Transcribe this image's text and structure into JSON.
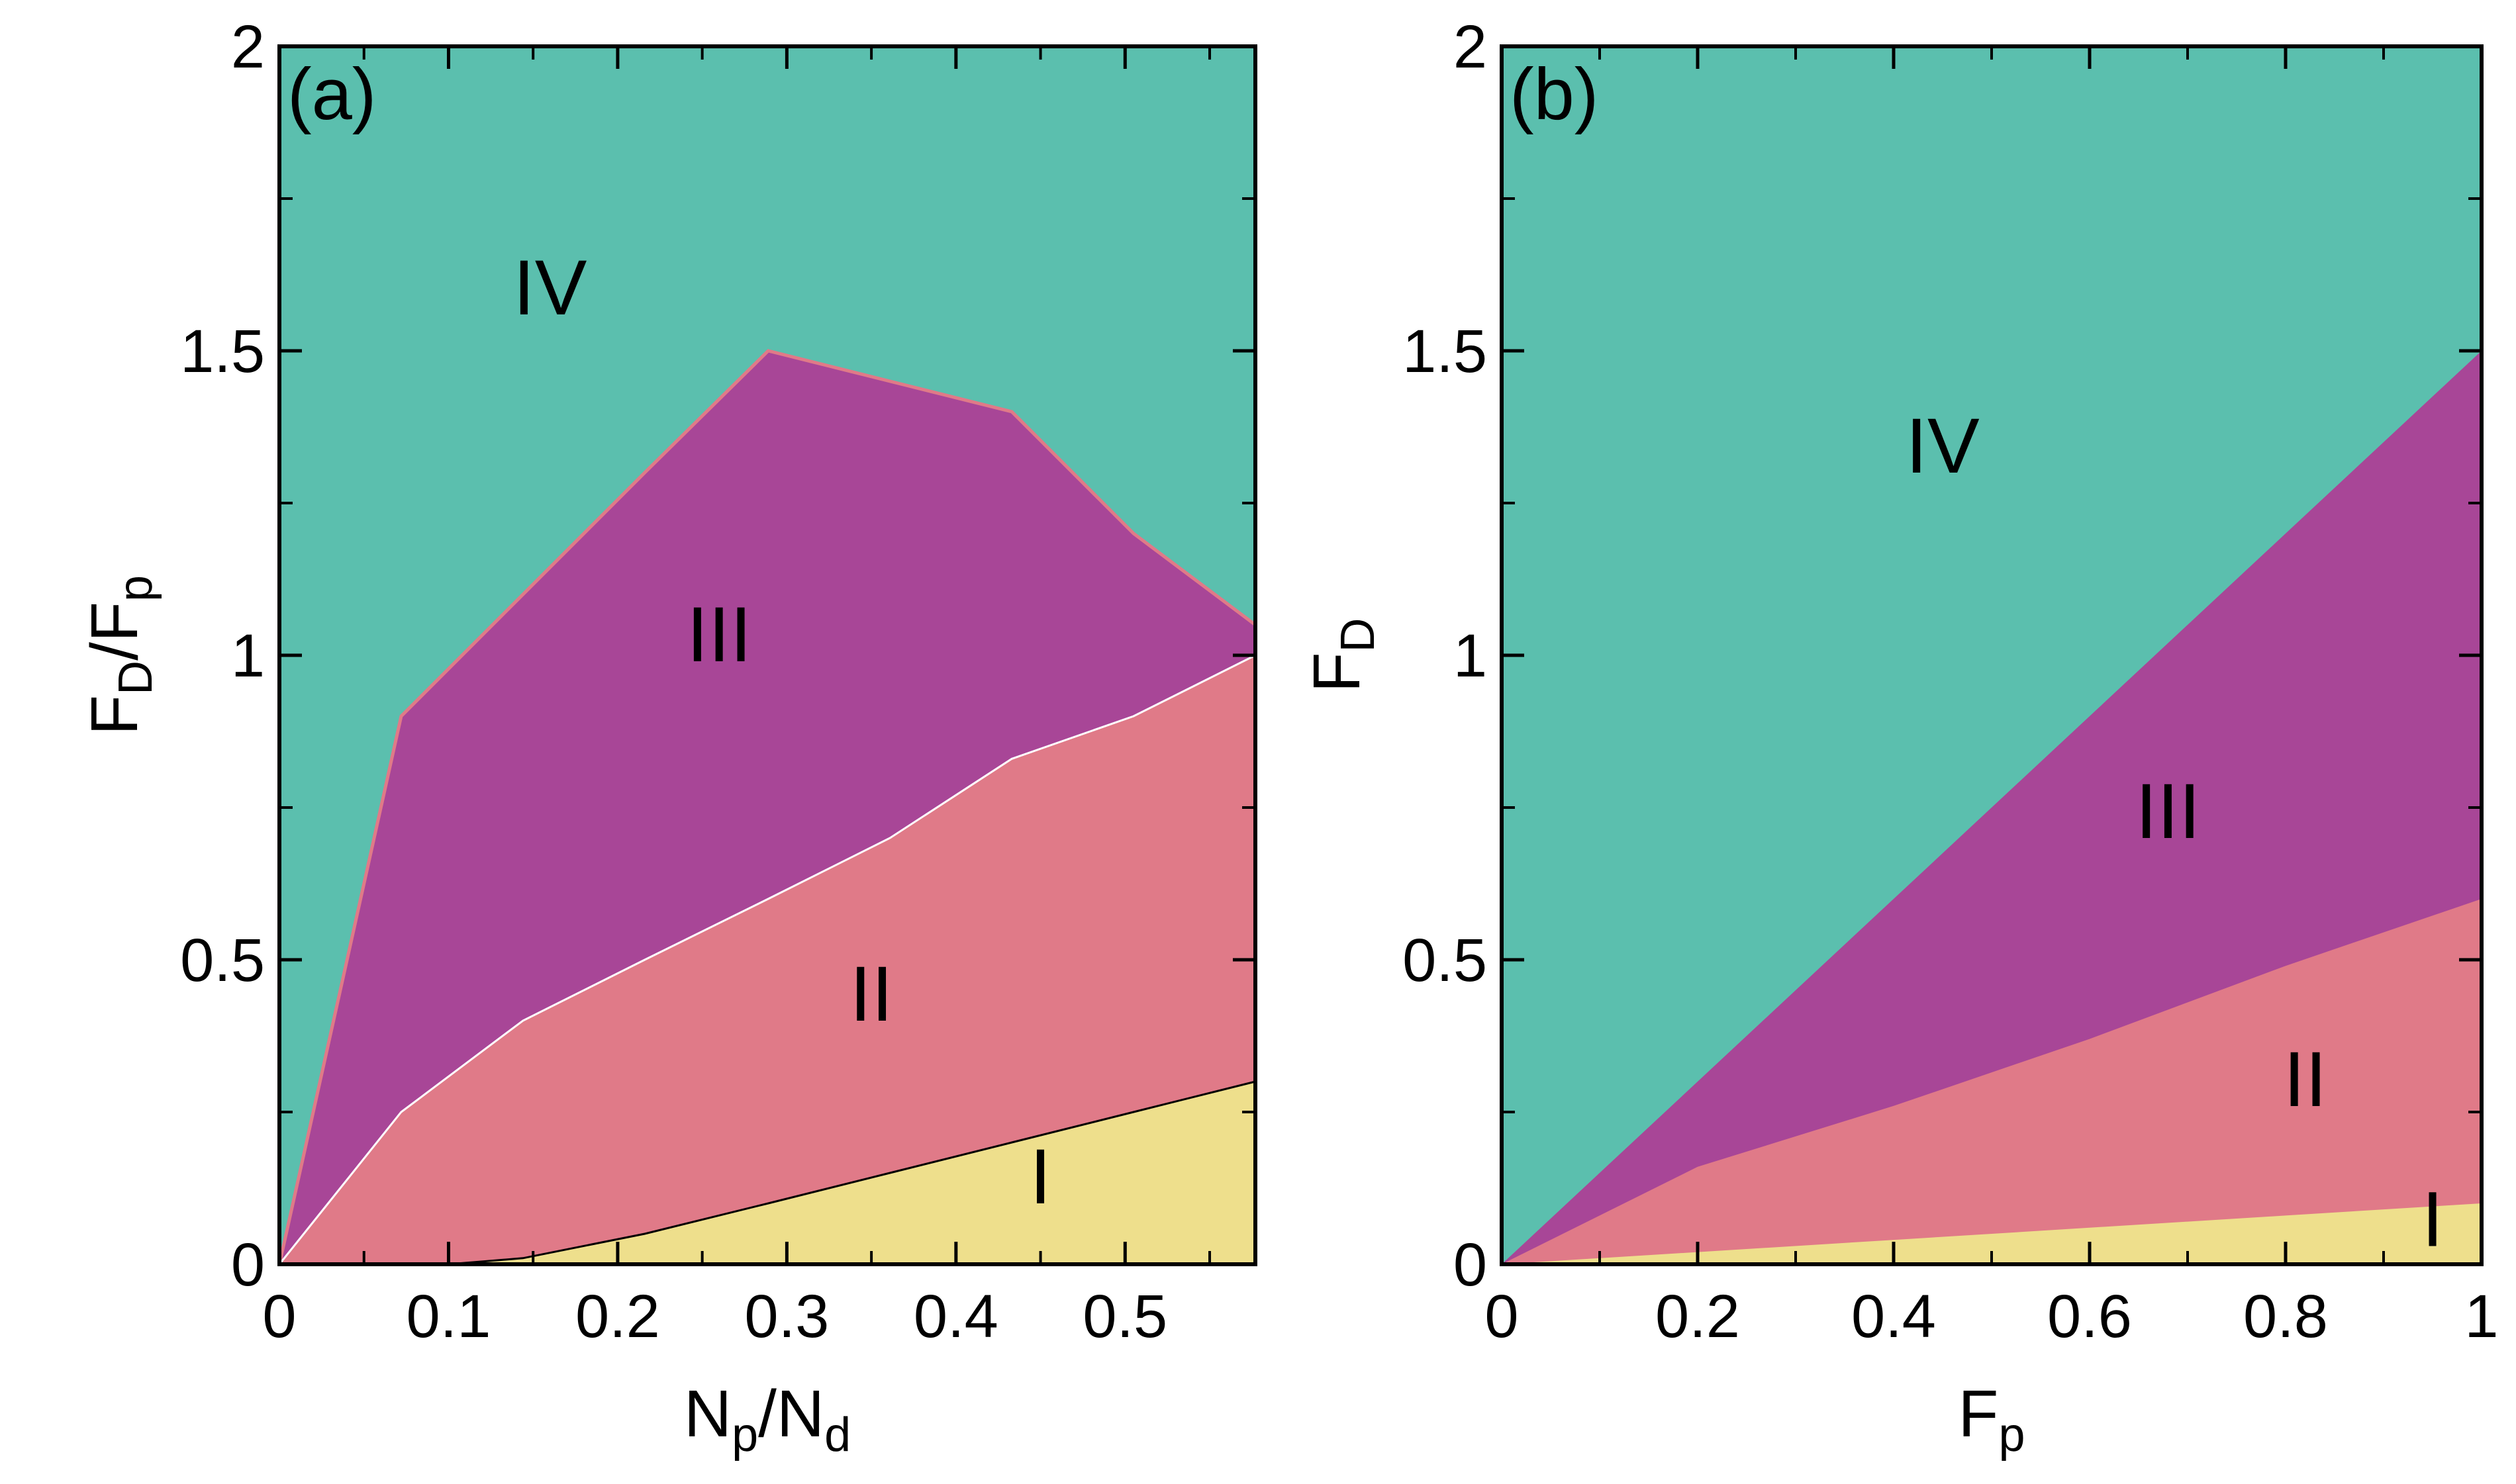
{
  "chart_data": [
    {
      "type": "area",
      "panel_label": "(a)",
      "xlabel": {
        "main1": "N",
        "sub1": "p",
        "mid": "/N",
        "sub2": "d"
      },
      "ylabel": {
        "main1": "F",
        "sub1": "D",
        "mid": "/F",
        "sub2": "p"
      },
      "xlim": [
        0,
        0.577
      ],
      "ylim": [
        0,
        2
      ],
      "xticks": [
        0,
        0.1,
        0.2,
        0.3,
        0.4,
        0.5
      ],
      "xtick_labels": [
        "0",
        "0.1",
        "0.2",
        "0.3",
        "0.4",
        "0.5"
      ],
      "yticks": [
        0,
        0.5,
        1,
        1.5,
        2
      ],
      "ytick_labels": [
        "0",
        "0.5",
        "1",
        "1.5",
        "2"
      ],
      "regions": [
        {
          "name": "IV",
          "color": "#5bbfae",
          "label_at": [
            0.16,
            1.56
          ]
        },
        {
          "name": "III",
          "color": "#a84697",
          "label_at": [
            0.26,
            0.99
          ]
        },
        {
          "name": "II",
          "color": "#e07a88",
          "label_at": [
            0.35,
            0.4
          ]
        },
        {
          "name": "I",
          "color": "#eedf8c",
          "label_at": [
            0.45,
            0.1
          ]
        }
      ],
      "boundaries": {
        "III_IV": {
          "x": [
            0,
            0.072,
            0.144,
            0.216,
            0.289,
            0.361,
            0.433,
            0.505,
            0.577
          ],
          "y": [
            0,
            0.9,
            1.1,
            1.3,
            1.5,
            1.45,
            1.4,
            1.2,
            1.05
          ]
        },
        "II_III": {
          "x": [
            0,
            0.072,
            0.144,
            0.216,
            0.289,
            0.361,
            0.433,
            0.505,
            0.577
          ],
          "y": [
            0,
            0.25,
            0.4,
            0.5,
            0.6,
            0.7,
            0.83,
            0.9,
            1.0
          ]
        },
        "I_II": {
          "x": [
            0.1,
            0.144,
            0.216,
            0.289,
            0.361,
            0.433,
            0.505,
            0.577
          ],
          "y": [
            0,
            0.01,
            0.05,
            0.1,
            0.15,
            0.2,
            0.25,
            0.3
          ]
        }
      }
    },
    {
      "type": "area",
      "panel_label": "(b)",
      "xlabel": {
        "main1": "F",
        "sub1": "p"
      },
      "ylabel": {
        "main1": "F",
        "sub1": "D"
      },
      "xlim": [
        0,
        1
      ],
      "ylim": [
        0,
        2
      ],
      "xticks": [
        0,
        0.2,
        0.4,
        0.6,
        0.8,
        1
      ],
      "xtick_labels": [
        "0",
        "0.2",
        "0.4",
        "0.6",
        "0.8",
        "1"
      ],
      "yticks": [
        0,
        0.5,
        1,
        1.5,
        2
      ],
      "ytick_labels": [
        "0",
        "0.5",
        "1",
        "1.5",
        "2"
      ],
      "regions": [
        {
          "name": "IV",
          "color": "#5bbfae",
          "label_at": [
            0.45,
            1.3
          ]
        },
        {
          "name": "III",
          "color": "#a84697",
          "label_at": [
            0.68,
            0.7
          ]
        },
        {
          "name": "II",
          "color": "#e07a88",
          "label_at": [
            0.82,
            0.26
          ]
        },
        {
          "name": "I",
          "color": "#eedf8c",
          "label_at": [
            0.95,
            0.03
          ]
        }
      ],
      "boundaries": {
        "III_IV": {
          "x": [
            0,
            0.2,
            0.4,
            0.6,
            0.8,
            1.0
          ],
          "y": [
            0,
            0.3,
            0.6,
            0.9,
            1.2,
            1.5
          ]
        },
        "II_III": {
          "x": [
            0,
            0.2,
            0.4,
            0.6,
            0.8,
            1.0
          ],
          "y": [
            0,
            0.16,
            0.26,
            0.37,
            0.49,
            0.6
          ]
        },
        "I_II": {
          "x": [
            0,
            0.2,
            0.4,
            0.6,
            0.8,
            1.0
          ],
          "y": [
            0,
            0.02,
            0.04,
            0.06,
            0.08,
            0.1
          ]
        }
      }
    }
  ]
}
